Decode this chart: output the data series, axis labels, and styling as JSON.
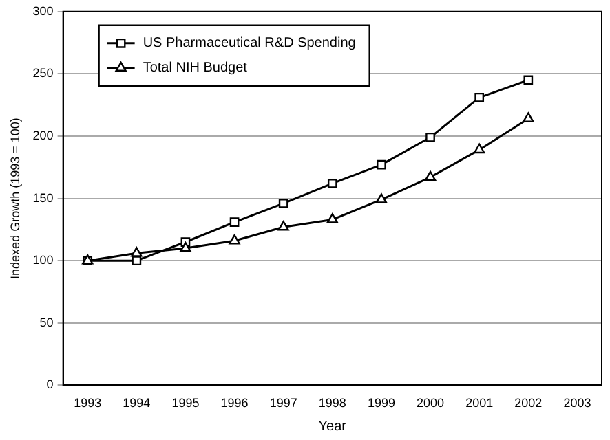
{
  "chart_data": {
    "type": "line",
    "xlabel": "Year",
    "ylabel": "Indexed Growth (1993 = 100)",
    "categories": [
      "1993",
      "1994",
      "1995",
      "1996",
      "1997",
      "1998",
      "1999",
      "2000",
      "2001",
      "2002",
      "2003"
    ],
    "series": [
      {
        "name": "US Pharmaceutical R&D Spending",
        "color": "#000000",
        "marker": "square",
        "values": [
          100,
          100,
          115,
          131,
          146,
          162,
          177,
          199,
          231,
          245,
          null
        ]
      },
      {
        "name": "Total NIH Budget",
        "color": "#000000",
        "marker": "triangle",
        "values": [
          100,
          106,
          110,
          116,
          127,
          133,
          149,
          167,
          189,
          214,
          null
        ]
      }
    ],
    "ylim": [
      0,
      300
    ],
    "yticks": [
      0,
      50,
      100,
      150,
      200,
      250,
      300
    ],
    "grid": "y",
    "legend": "top left",
    "line_style": "solid"
  }
}
